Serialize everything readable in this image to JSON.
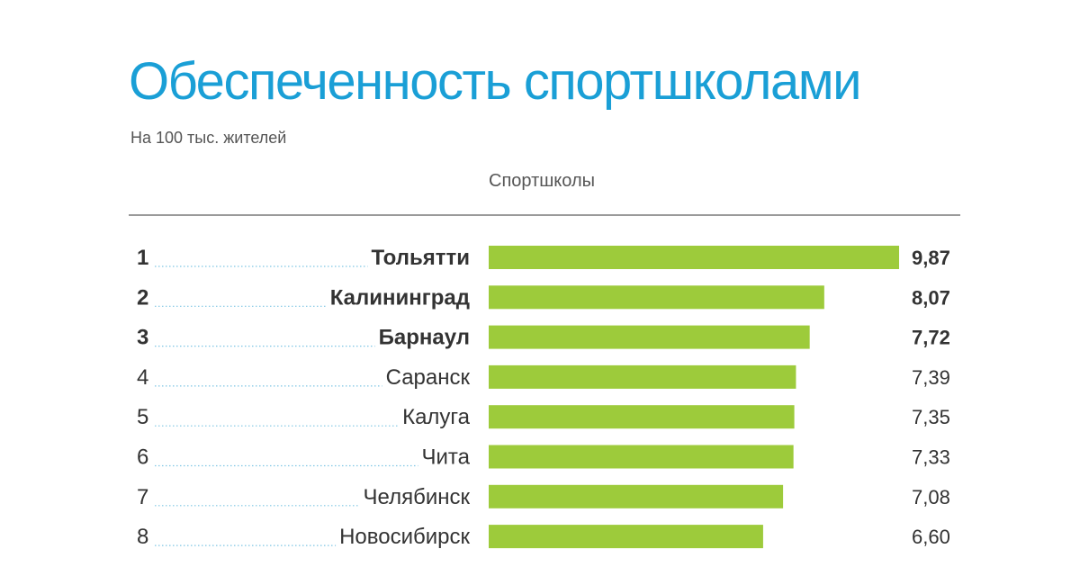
{
  "header": {
    "title": "Обеспеченность спортшколами",
    "subtitle": "На 100 тыс. жителей",
    "column_label": "Спортшколы"
  },
  "colors": {
    "title": "#1a9fd6",
    "bar": "#9dcb3b",
    "leader": "#7fc6e4",
    "text": "#333333",
    "rule": "#9a9a9a"
  },
  "chart_data": {
    "type": "bar",
    "orientation": "horizontal",
    "title": "Обеспеченность спортшколами",
    "subtitle": "На 100 тыс. жителей",
    "series": [
      {
        "name": "Спортшколы",
        "values": [
          9.87,
          8.07,
          7.72,
          7.39,
          7.35,
          7.33,
          7.08,
          6.6
        ]
      }
    ],
    "ranks": [
      "1",
      "2",
      "3",
      "4",
      "5",
      "6",
      "7",
      "8"
    ],
    "categories": [
      "Тольятти",
      "Калининград",
      "Барнаул",
      "Саранск",
      "Калуга",
      "Чита",
      "Челябинск",
      "Новосибирск"
    ],
    "value_labels": [
      "9,87",
      "8,07",
      "7,72",
      "7,39",
      "7,35",
      "7,33",
      "7,08",
      "6,60"
    ],
    "highlighted_top": 3,
    "xlim": [
      0,
      9.87
    ],
    "grid": false,
    "legend": "none"
  }
}
